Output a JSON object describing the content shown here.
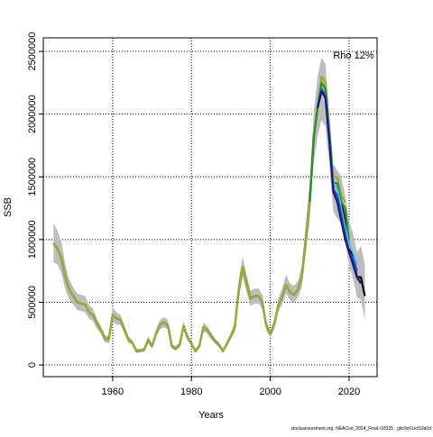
{
  "chart_data": {
    "type": "line",
    "annotation": "Rho 12%",
    "xlabel": "Years",
    "ylabel": "SSB",
    "footer": "stockassessment.org, NEACod_2024_Final,r18225 , gitc9c61ec53a0d",
    "xlim": [
      1942.4,
      2027.1
    ],
    "xticks": [
      1960,
      1980,
      2000,
      2020
    ],
    "ylim": [
      -93000,
      2608000
    ],
    "yticks": [
      0,
      500000,
      1000000,
      1500000,
      2000000,
      2500000
    ],
    "grid": true,
    "band": {
      "color": "#bdbdbd",
      "x": [
        1945,
        1946,
        1947,
        1948,
        1949,
        1950,
        1951,
        1952,
        1953,
        1954,
        1955,
        1956,
        1957,
        1958,
        1959,
        1960,
        1961,
        1962,
        1963,
        1964,
        1965,
        1966,
        1967,
        1968,
        1969,
        1970,
        1971,
        1972,
        1973,
        1974,
        1975,
        1976,
        1977,
        1978,
        1979,
        1980,
        1981,
        1982,
        1983,
        1984,
        1985,
        1986,
        1987,
        1988,
        1989,
        1990,
        1991,
        1992,
        1993,
        1994,
        1995,
        1996,
        1997,
        1998,
        1999,
        2000,
        2001,
        2002,
        2003,
        2004,
        2005,
        2006,
        2007,
        2008,
        2009,
        2010,
        2011,
        2012,
        2013,
        2014,
        2015,
        2016,
        2017,
        2018,
        2019,
        2020,
        2021,
        2022,
        2023,
        2024
      ],
      "upper": [
        1130000,
        1070000,
        980000,
        800000,
        680000,
        620000,
        570000,
        560000,
        550000,
        480000,
        450000,
        370000,
        310000,
        240000,
        230000,
        460000,
        420000,
        400000,
        310000,
        230000,
        200000,
        130000,
        130000,
        140000,
        230000,
        170000,
        280000,
        360000,
        380000,
        360000,
        170000,
        150000,
        180000,
        350000,
        250000,
        190000,
        130000,
        170000,
        340000,
        310000,
        260000,
        210000,
        180000,
        130000,
        190000,
        260000,
        340000,
        680000,
        860000,
        720000,
        590000,
        610000,
        610000,
        560000,
        350000,
        280000,
        360000,
        530000,
        610000,
        720000,
        650000,
        630000,
        670000,
        790000,
        1120000,
        1450000,
        2000000,
        2300000,
        2450000,
        2400000,
        2000000,
        1600000,
        1550000,
        1500000,
        1350000,
        1150000,
        1050000,
        900000,
        950000,
        800000
      ],
      "lower": [
        820000,
        800000,
        730000,
        600000,
        520000,
        480000,
        440000,
        430000,
        420000,
        370000,
        350000,
        290000,
        250000,
        180000,
        175000,
        350000,
        320000,
        320000,
        250000,
        175000,
        160000,
        95000,
        100000,
        105000,
        175000,
        130000,
        220000,
        285000,
        300000,
        285000,
        130000,
        115000,
        140000,
        275000,
        195000,
        150000,
        95000,
        130000,
        265000,
        250000,
        205000,
        170000,
        140000,
        95000,
        150000,
        205000,
        265000,
        530000,
        700000,
        580000,
        470000,
        490000,
        490000,
        445000,
        275000,
        220000,
        285000,
        420000,
        480000,
        570000,
        515000,
        495000,
        535000,
        620000,
        890000,
        1150000,
        1600000,
        1820000,
        1950000,
        1900000,
        1600000,
        1220000,
        1170000,
        1120000,
        980000,
        790000,
        690000,
        540000,
        520000,
        360000
      ]
    },
    "series": [
      {
        "color": "#000000",
        "x": [
          1945,
          1946,
          1947,
          1948,
          1949,
          1950,
          1951,
          1952,
          1953,
          1954,
          1955,
          1956,
          1957,
          1958,
          1959,
          1960,
          1961,
          1962,
          1963,
          1964,
          1965,
          1966,
          1967,
          1968,
          1969,
          1970,
          1971,
          1972,
          1973,
          1974,
          1975,
          1976,
          1977,
          1978,
          1979,
          1980,
          1981,
          1982,
          1983,
          1984,
          1985,
          1986,
          1987,
          1988,
          1989,
          1990,
          1991,
          1992,
          1993,
          1994,
          1995,
          1996,
          1997,
          1998,
          1999,
          2000,
          2001,
          2002,
          2003,
          2004,
          2005,
          2006,
          2007,
          2008,
          2009,
          2010,
          2011,
          2012,
          2013,
          2014,
          2015,
          2016,
          2017,
          2018,
          2019,
          2020,
          2021,
          2022,
          2023,
          2024
        ],
        "values": [
          970000,
          930000,
          850000,
          700000,
          600000,
          550000,
          500000,
          490000,
          480000,
          420000,
          400000,
          330000,
          280000,
          210000,
          200000,
          400000,
          370000,
          360000,
          280000,
          200000,
          180000,
          110000,
          115000,
          120000,
          200000,
          150000,
          250000,
          320000,
          340000,
          320000,
          150000,
          130000,
          160000,
          310000,
          220000,
          170000,
          110000,
          150000,
          300000,
          280000,
          230000,
          190000,
          160000,
          110000,
          170000,
          230000,
          300000,
          600000,
          780000,
          650000,
          530000,
          550000,
          550000,
          500000,
          310000,
          250000,
          320000,
          470000,
          540000,
          640000,
          580000,
          560000,
          600000,
          700000,
          1000000,
          1300000,
          1800000,
          2050000,
          2200000,
          2150000,
          1800000,
          1400000,
          1350000,
          1300000,
          1150000,
          950000,
          850000,
          700000,
          700000,
          550000
        ]
      },
      {
        "color": "#9aae2f",
        "x": [
          1945,
          1946,
          1947,
          1948,
          1949,
          1950,
          1951,
          1952,
          1953,
          1954,
          1955,
          1956,
          1957,
          1958,
          1959,
          1960,
          1961,
          1962,
          1963,
          1964,
          1965,
          1966,
          1967,
          1968,
          1969,
          1970,
          1971,
          1972,
          1973,
          1974,
          1975,
          1976,
          1977,
          1978,
          1979,
          1980,
          1981,
          1982,
          1983,
          1984,
          1985,
          1986,
          1987,
          1988,
          1989,
          1990,
          1991,
          1992,
          1993,
          1994,
          1995,
          1996,
          1997,
          1998,
          1999,
          2000,
          2001,
          2002,
          2003,
          2004,
          2005,
          2006,
          2007,
          2008,
          2009,
          2010,
          2011,
          2012,
          2013,
          2014,
          2015,
          2016,
          2017,
          2018,
          2019
        ],
        "values": [
          970000,
          930000,
          850000,
          700000,
          600000,
          550000,
          500000,
          490000,
          480000,
          420000,
          400000,
          330000,
          280000,
          210000,
          200000,
          400000,
          370000,
          360000,
          280000,
          200000,
          180000,
          110000,
          115000,
          120000,
          200000,
          150000,
          250000,
          320000,
          340000,
          320000,
          150000,
          130000,
          160000,
          310000,
          220000,
          170000,
          110000,
          150000,
          300000,
          280000,
          230000,
          190000,
          160000,
          110000,
          170000,
          230000,
          300000,
          600000,
          780000,
          650000,
          530000,
          550000,
          550000,
          500000,
          310000,
          250000,
          320000,
          470000,
          540000,
          640000,
          580000,
          560000,
          600000,
          700000,
          1000000,
          1300000,
          1800000,
          2050000,
          2300000,
          2250000,
          1850000,
          1500000,
          1500000,
          1350000,
          1300000
        ]
      },
      {
        "color": "#2e8b2e",
        "x": [
          2010,
          2011,
          2012,
          2013,
          2014,
          2015,
          2016,
          2017,
          2018,
          2019,
          2020
        ],
        "values": [
          1300000,
          1800000,
          2050000,
          2250000,
          2200000,
          1850000,
          1450000,
          1450000,
          1300000,
          1250000,
          1000000
        ]
      },
      {
        "color": "#4fc3e0",
        "x": [
          2012,
          2013,
          2014,
          2015,
          2016,
          2017,
          2018,
          2019,
          2020,
          2021,
          2022
        ],
        "values": [
          2050000,
          2200000,
          2150000,
          1800000,
          1450000,
          1400000,
          1250000,
          1100000,
          950000,
          900000,
          800000
        ]
      },
      {
        "color": "#2b4bd6",
        "x": [
          2012,
          2013,
          2014,
          2015,
          2016,
          2017,
          2018,
          2019,
          2020,
          2021,
          2022
        ],
        "values": [
          2050000,
          2200000,
          2150000,
          1800000,
          1400000,
          1350000,
          1200000,
          1050000,
          900000,
          850000,
          750000
        ]
      },
      {
        "color": "#1a1a6e",
        "x": [
          2012,
          2013,
          2014,
          2015,
          2016,
          2017,
          2018,
          2019,
          2020,
          2021,
          2022,
          2023
        ],
        "values": [
          2050000,
          2180000,
          2130000,
          1780000,
          1380000,
          1300000,
          1150000,
          1000000,
          900000,
          800000,
          700000,
          650000
        ]
      }
    ]
  }
}
